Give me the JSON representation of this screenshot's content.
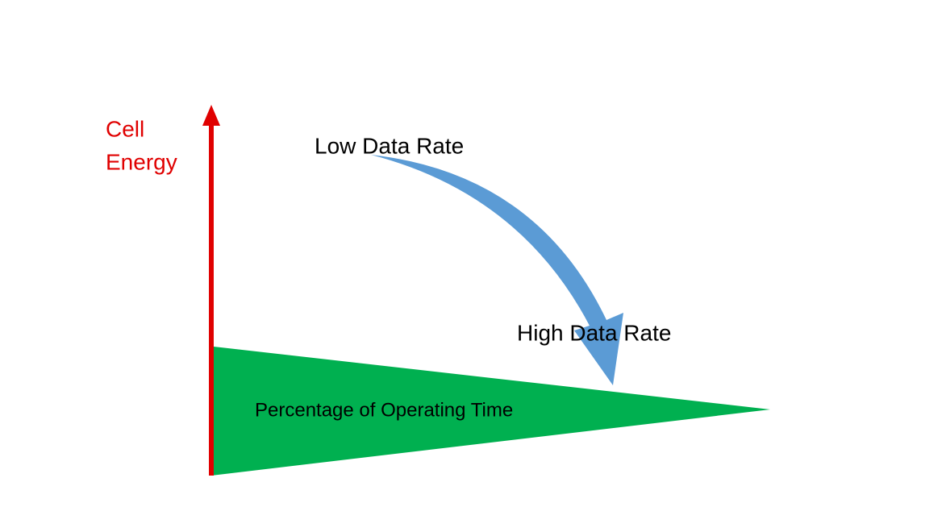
{
  "axis_label": [
    "Cell",
    "Energy"
  ],
  "annotations": {
    "start": "Low Data Rate",
    "end": "High Data Rate"
  },
  "region_label": "Percentage of Operating Time"
}
